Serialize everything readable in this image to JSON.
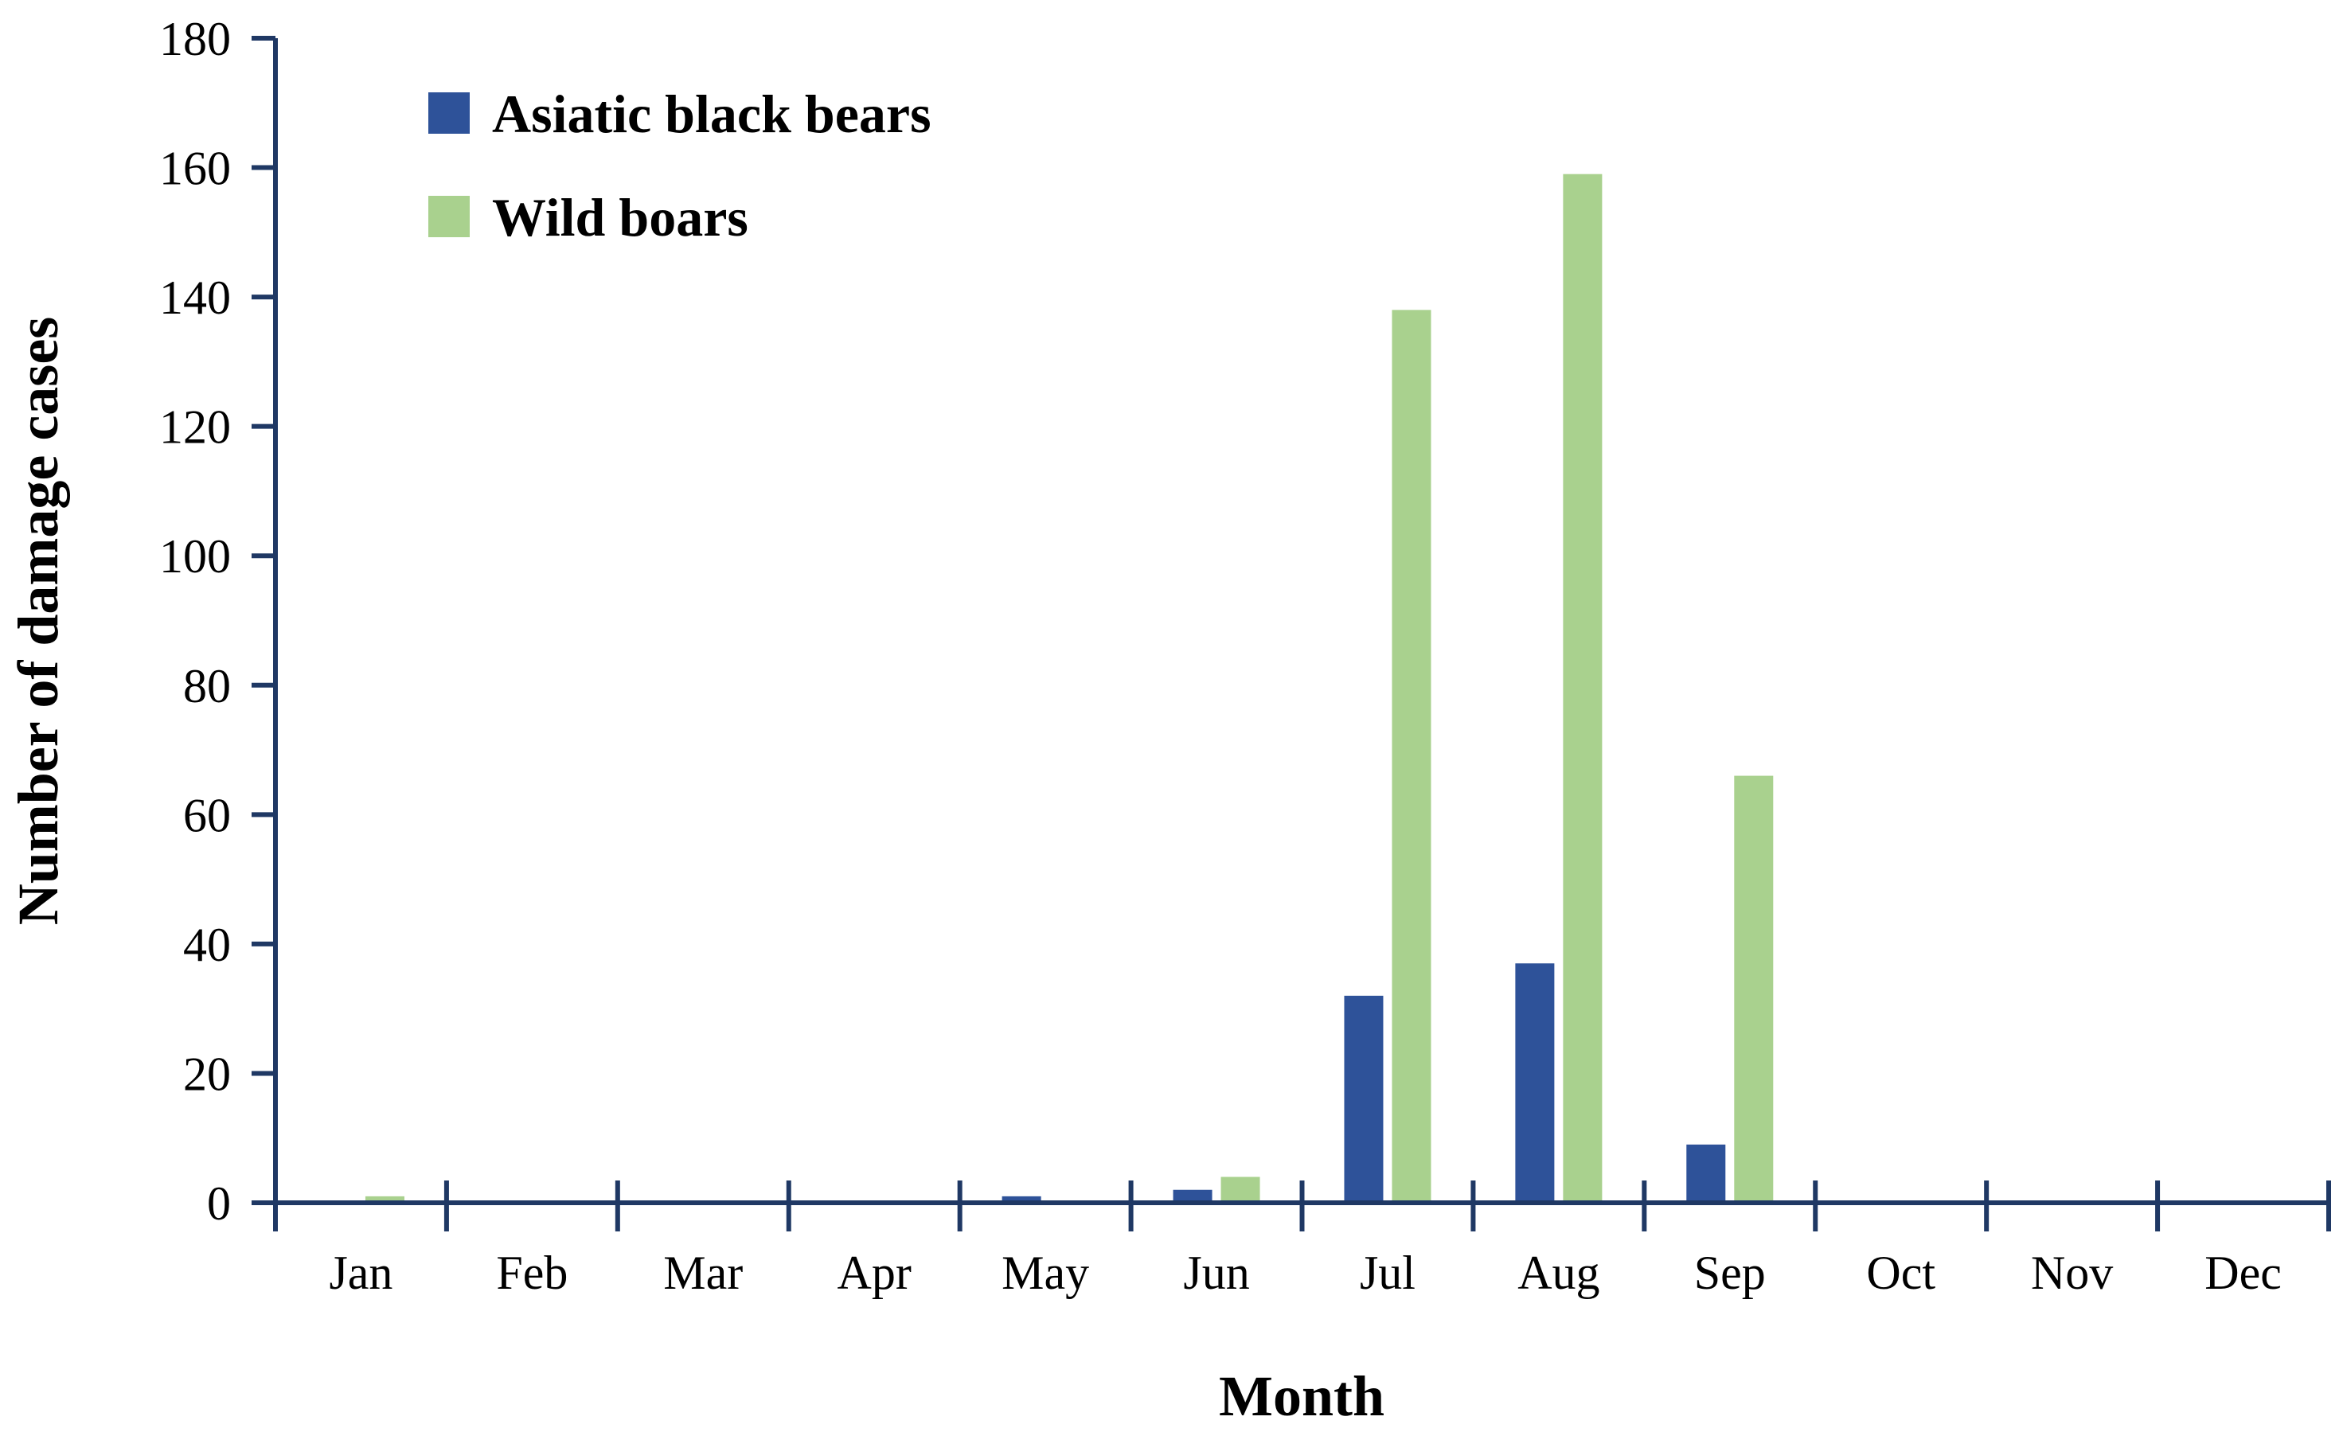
{
  "chart_data": {
    "type": "bar",
    "title": "",
    "xlabel": "Month",
    "ylabel": "Number of damage cases",
    "ylim": [
      0,
      180
    ],
    "yticks": [
      0,
      20,
      40,
      60,
      80,
      100,
      120,
      140,
      160,
      180
    ],
    "ytick_labels": [
      "0",
      "20",
      "40",
      "60",
      "80",
      "100",
      "120",
      "140",
      "160",
      "180"
    ],
    "categories": [
      "Jan",
      "Feb",
      "Mar",
      "Apr",
      "May",
      "Jun",
      "Jul",
      "Aug",
      "Sep",
      "Oct",
      "Nov",
      "Dec"
    ],
    "series": [
      {
        "name": "Asiatic black bears",
        "color": "#2e5299",
        "values": [
          0,
          0,
          0,
          0,
          1,
          2,
          32,
          37,
          9,
          0,
          0,
          0
        ]
      },
      {
        "name": "Wild boars",
        "color": "#a9d18e",
        "values": [
          1,
          0,
          0,
          0,
          0,
          4,
          138,
          159,
          66,
          0,
          0,
          0
        ]
      }
    ],
    "grid": false,
    "legend_position": "top-left",
    "axis_color": "#1f3864"
  }
}
